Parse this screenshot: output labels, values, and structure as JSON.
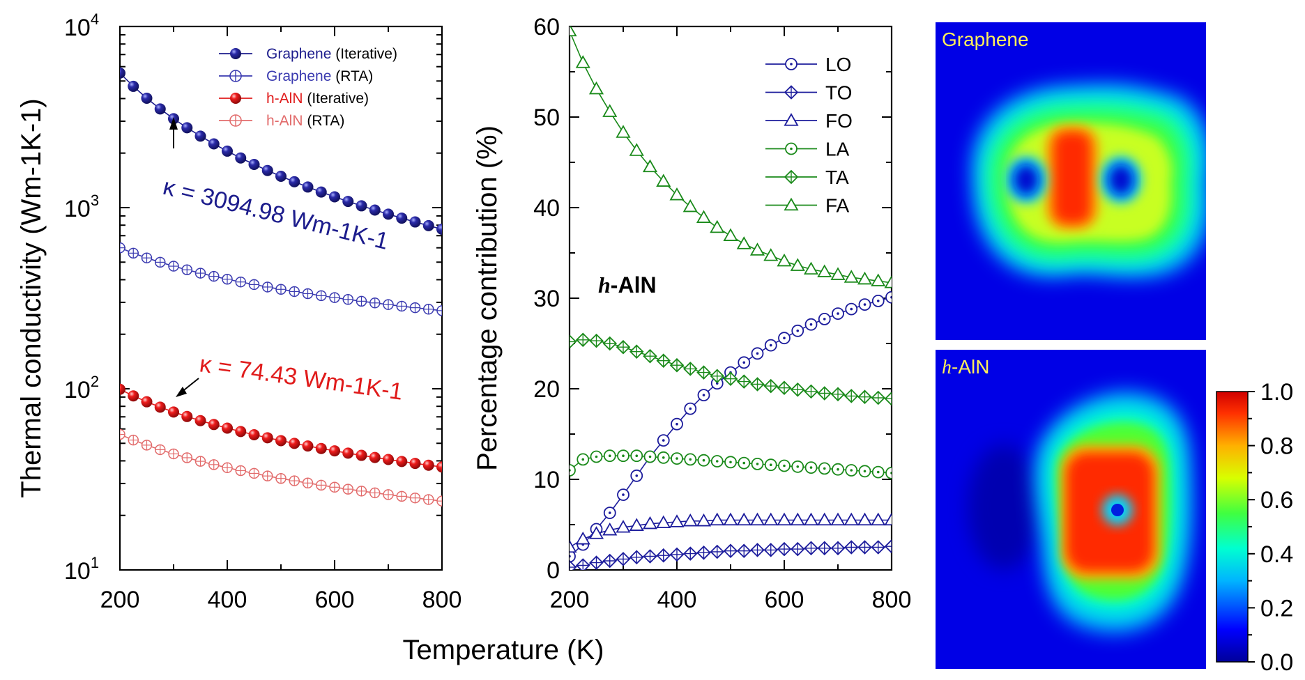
{
  "chart_data": [
    {
      "type": "scatter",
      "panel": "a",
      "ylabel": "Thermal conductivity (Wm-1K-1)",
      "xlabel": "Temperature (K)",
      "xlim": [
        200,
        800
      ],
      "ylim": [
        10,
        10000
      ],
      "yscale": "log",
      "x_ticks": [
        "200",
        "400",
        "600",
        "800"
      ],
      "y_ticks": [
        "10",
        "10",
        "10",
        "10"
      ],
      "y_tick_exponents": [
        "1",
        "2",
        "3",
        "4"
      ],
      "legend_position": "top-right",
      "series": [
        {
          "name": "Graphene",
          "method": "(Iterative)",
          "color": "#1c1c8c",
          "marker": "filled-sphere",
          "at300": 3094.98
        },
        {
          "name": "Graphene",
          "method": "(RTA)",
          "color": "#3a3ab0",
          "marker": "crossed-circle",
          "at200": 600,
          "at800": 270
        },
        {
          "name": "h-AlN",
          "method": "(Iterative)",
          "color": "#e01b1b",
          "marker": "filled-sphere",
          "at300": 74.43,
          "at800": 37
        },
        {
          "name": "h-AlN",
          "method": "(RTA)",
          "color": "#e26b6b",
          "marker": "crossed-circle",
          "at200": 56,
          "at800": 24
        }
      ],
      "annotations": [
        {
          "text": "κ = 3094.98 Wm-1K-1",
          "color": "#1c1c8c"
        },
        {
          "text": "κ = 74.43 Wm-1K-1",
          "color": "#e01b1b"
        }
      ]
    },
    {
      "type": "line",
      "panel": "b",
      "ylabel": "Percentage contribution (%)",
      "xlim": [
        200,
        800
      ],
      "ylim": [
        0,
        60
      ],
      "x_ticks": [
        "200",
        "400",
        "600",
        "800"
      ],
      "y_ticks": [
        "0",
        "10",
        "20",
        "30",
        "40",
        "50",
        "60"
      ],
      "annotation": {
        "italic": "h",
        "rest": "-AlN"
      },
      "legend_position": "top-right",
      "x": [
        200,
        225,
        250,
        275,
        300,
        325,
        350,
        375,
        400,
        425,
        450,
        475,
        500,
        525,
        550,
        575,
        600,
        625,
        650,
        675,
        700,
        725,
        750,
        775,
        800
      ],
      "series": [
        {
          "name": "LO",
          "color": "#1c1c9c",
          "marker": "dot-circle",
          "values": [
            1.5,
            2.8,
            4.5,
            6.3,
            8.3,
            10.4,
            12.5,
            14.3,
            16.1,
            17.8,
            19.3,
            20.6,
            21.8,
            22.9,
            23.9,
            24.8,
            25.6,
            26.4,
            27.1,
            27.7,
            28.3,
            28.8,
            29.3,
            29.7,
            30.1
          ]
        },
        {
          "name": "TO",
          "color": "#1c1c9c",
          "marker": "crossed-diamond",
          "values": [
            0.3,
            0.5,
            0.8,
            1.0,
            1.2,
            1.4,
            1.5,
            1.6,
            1.7,
            1.8,
            1.9,
            2.0,
            2.1,
            2.1,
            2.2,
            2.2,
            2.3,
            2.3,
            2.4,
            2.4,
            2.4,
            2.5,
            2.5,
            2.5,
            2.6
          ]
        },
        {
          "name": "FO",
          "color": "#1c1c9c",
          "marker": "triangle",
          "values": [
            2.5,
            3.4,
            4.0,
            4.4,
            4.7,
            4.9,
            5.1,
            5.2,
            5.3,
            5.4,
            5.4,
            5.5,
            5.5,
            5.5,
            5.5,
            5.5,
            5.5,
            5.5,
            5.5,
            5.5,
            5.5,
            5.5,
            5.5,
            5.5,
            5.5
          ]
        },
        {
          "name": "LA",
          "color": "#1a8a1a",
          "marker": "dot-circle",
          "values": [
            11.0,
            12.2,
            12.5,
            12.6,
            12.6,
            12.6,
            12.5,
            12.4,
            12.3,
            12.2,
            12.1,
            12.0,
            11.9,
            11.8,
            11.7,
            11.6,
            11.5,
            11.4,
            11.3,
            11.2,
            11.1,
            11.0,
            10.9,
            10.8,
            10.7
          ]
        },
        {
          "name": "TA",
          "color": "#1a8a1a",
          "marker": "crossed-diamond",
          "values": [
            25.2,
            25.4,
            25.3,
            25.0,
            24.6,
            24.1,
            23.6,
            23.1,
            22.6,
            22.2,
            21.8,
            21.4,
            21.1,
            20.8,
            20.5,
            20.3,
            20.1,
            19.9,
            19.7,
            19.5,
            19.4,
            19.2,
            19.1,
            19.0,
            18.9
          ]
        },
        {
          "name": "FA",
          "color": "#1a8a1a",
          "marker": "triangle",
          "values": [
            59.5,
            56.0,
            53.1,
            50.6,
            48.3,
            46.3,
            44.5,
            42.9,
            41.4,
            40.1,
            38.9,
            37.8,
            36.9,
            36.0,
            35.3,
            34.7,
            34.1,
            33.6,
            33.2,
            32.9,
            32.6,
            32.3,
            32.1,
            31.9,
            31.7
          ]
        }
      ]
    },
    {
      "type": "heatmap",
      "panels": [
        {
          "label": "Graphene"
        },
        {
          "label_italic": "h",
          "label_rest": "-AlN"
        }
      ],
      "colorbar": {
        "ticks": [
          "0.0",
          "0.2",
          "0.4",
          "0.6",
          "0.8",
          "1.0"
        ],
        "range": [
          0,
          1
        ]
      }
    }
  ],
  "shared_xlabel": "Temperature (K)"
}
